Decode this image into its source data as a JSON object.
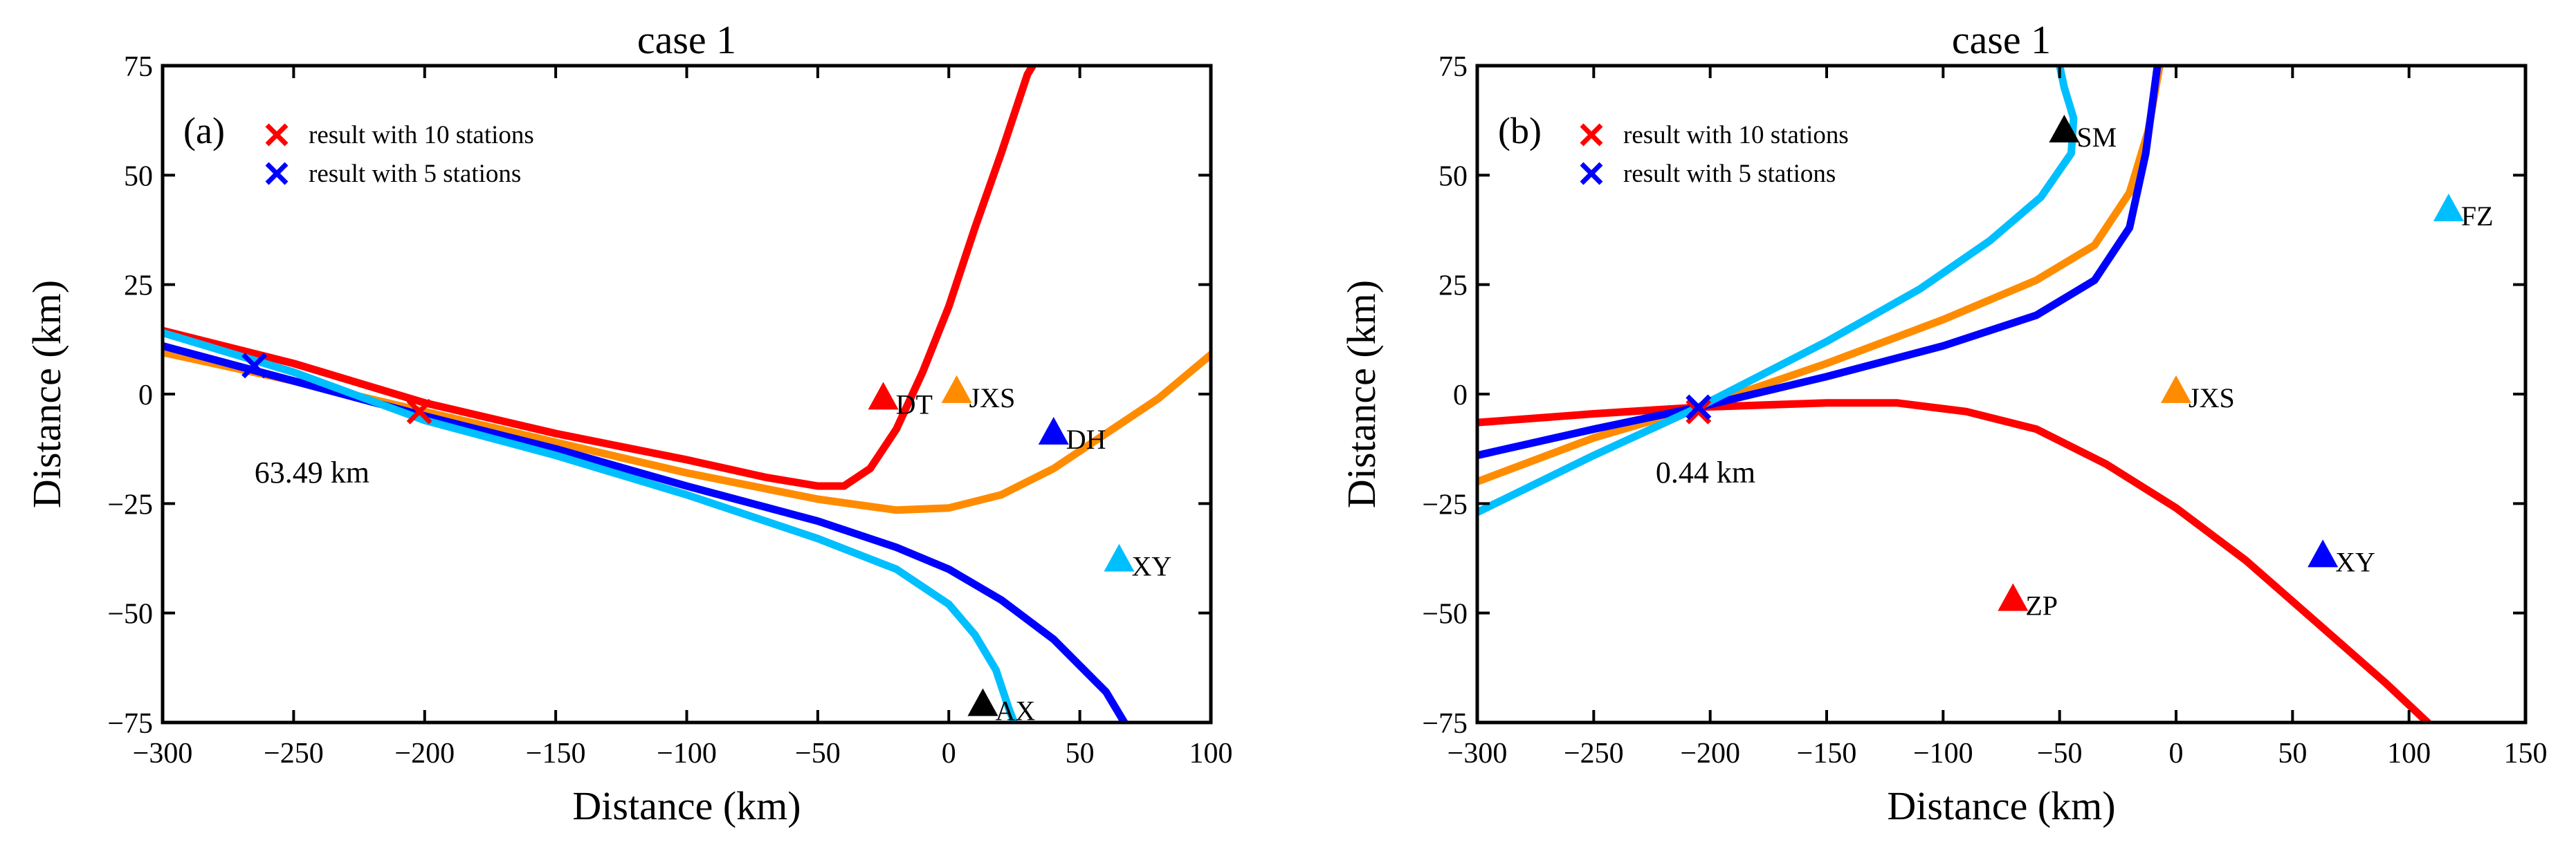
{
  "chart_data": [
    {
      "type": "line",
      "panel_label": "(a)",
      "title": "case 1",
      "xlabel": "Distance (km)",
      "ylabel": "Distance (km)",
      "xlim": [
        -300,
        100
      ],
      "ylim": [
        -75,
        75
      ],
      "xticks": [
        -300,
        -250,
        -200,
        -150,
        -100,
        -50,
        0,
        50,
        100
      ],
      "yticks": [
        -75,
        -50,
        -25,
        0,
        25,
        50,
        75
      ],
      "xtick_labels": [
        "−300",
        "−250",
        "−200",
        "−150",
        "−100",
        "−50",
        "0",
        "50",
        "100"
      ],
      "ytick_labels": [
        "−75",
        "−50",
        "−25",
        "0",
        "25",
        "50",
        "75"
      ],
      "annotation": "63.49 km",
      "legend": {
        "position": "top-left",
        "entries": [
          {
            "label": "result with 10 stations",
            "color": "#ff0000",
            "marker": "x"
          },
          {
            "label": "result with 5 stations",
            "color": "#0000ff",
            "marker": "x"
          }
        ]
      },
      "series": [
        {
          "name": "red curve",
          "color": "#ff0000",
          "points": [
            [
              -300,
              14.5
            ],
            [
              -250,
              7
            ],
            [
              -200,
              -2
            ],
            [
              -150,
              -9
            ],
            [
              -100,
              -15
            ],
            [
              -70,
              -19
            ],
            [
              -50,
              -21
            ],
            [
              -40,
              -21
            ],
            [
              -30,
              -17
            ],
            [
              -20,
              -8
            ],
            [
              -10,
              5
            ],
            [
              0,
              20
            ],
            [
              10,
              38
            ],
            [
              20,
              55
            ],
            [
              30,
              73
            ],
            [
              32,
              75
            ]
          ]
        },
        {
          "name": "orange curve",
          "color": "#ff8c00",
          "points": [
            [
              -300,
              9.5
            ],
            [
              -250,
              3
            ],
            [
              -200,
              -4
            ],
            [
              -150,
              -11
            ],
            [
              -100,
              -18
            ],
            [
              -50,
              -24
            ],
            [
              -20,
              -26.5
            ],
            [
              0,
              -26
            ],
            [
              20,
              -23
            ],
            [
              40,
              -17
            ],
            [
              60,
              -9
            ],
            [
              80,
              -1
            ],
            [
              100,
              9
            ]
          ]
        },
        {
          "name": "blue curve",
          "color": "#0000ff",
          "points": [
            [
              -300,
              11
            ],
            [
              -250,
              3
            ],
            [
              -200,
              -5
            ],
            [
              -150,
              -12.5
            ],
            [
              -100,
              -21
            ],
            [
              -50,
              -29
            ],
            [
              -20,
              -35
            ],
            [
              0,
              -40
            ],
            [
              20,
              -47
            ],
            [
              40,
              -56
            ],
            [
              60,
              -68
            ],
            [
              67,
              -75
            ]
          ]
        },
        {
          "name": "light blue curve",
          "color": "#00bfff",
          "points": [
            [
              -300,
              14
            ],
            [
              -250,
              5
            ],
            [
              -200,
              -6
            ],
            [
              -150,
              -14
            ],
            [
              -100,
              -23
            ],
            [
              -50,
              -33
            ],
            [
              -20,
              -40
            ],
            [
              0,
              -48
            ],
            [
              10,
              -55
            ],
            [
              18,
              -63
            ],
            [
              23,
              -72
            ],
            [
              25,
              -75
            ]
          ]
        }
      ],
      "crosses": [
        {
          "x": -265,
          "y": 6.5,
          "color": "#0000ff"
        },
        {
          "x": -202,
          "y": -4,
          "color": "#ff0000"
        }
      ],
      "stations": [
        {
          "name": "DT",
          "x": -25,
          "y": -1,
          "color": "#ff0000"
        },
        {
          "name": "JXS",
          "x": 3,
          "y": 0.5,
          "color": "#ff8c00"
        },
        {
          "name": "DH",
          "x": 40,
          "y": -9,
          "color": "#0000ff"
        },
        {
          "name": "XY",
          "x": 65,
          "y": -38,
          "color": "#00bfff"
        },
        {
          "name": "AX",
          "x": 13,
          "y": -71,
          "color": "#000000"
        }
      ]
    },
    {
      "type": "line",
      "panel_label": "(b)",
      "title": "case 1",
      "xlabel": "Distance (km)",
      "ylabel": "Distance (km)",
      "xlim": [
        -300,
        150
      ],
      "ylim": [
        -75,
        75
      ],
      "xticks": [
        -300,
        -250,
        -200,
        -150,
        -100,
        -50,
        0,
        50,
        100,
        150
      ],
      "yticks": [
        -75,
        -50,
        -25,
        0,
        25,
        50,
        75
      ],
      "xtick_labels": [
        "−300",
        "−250",
        "−200",
        "−150",
        "−100",
        "−50",
        "0",
        "50",
        "100",
        "150"
      ],
      "ytick_labels": [
        "−75",
        "−50",
        "−25",
        "0",
        "25",
        "50",
        "75"
      ],
      "annotation": "0.44 km",
      "legend": {
        "position": "top-left",
        "entries": [
          {
            "label": "result with 10 stations",
            "color": "#ff0000",
            "marker": "x"
          },
          {
            "label": "result with 5 stations",
            "color": "#0000ff",
            "marker": "x"
          }
        ]
      },
      "series": [
        {
          "name": "red curve",
          "color": "#ff0000",
          "points": [
            [
              -300,
              -6.5
            ],
            [
              -250,
              -4.5
            ],
            [
              -205,
              -3
            ],
            [
              -150,
              -2
            ],
            [
              -120,
              -2
            ],
            [
              -90,
              -4
            ],
            [
              -60,
              -8
            ],
            [
              -30,
              -16
            ],
            [
              0,
              -26
            ],
            [
              30,
              -38
            ],
            [
              60,
              -52
            ],
            [
              90,
              -66
            ],
            [
              108,
              -75
            ]
          ]
        },
        {
          "name": "orange curve",
          "color": "#ff8c00",
          "points": [
            [
              -300,
              -20
            ],
            [
              -250,
              -10
            ],
            [
              -205,
              -3
            ],
            [
              -150,
              7
            ],
            [
              -100,
              17
            ],
            [
              -60,
              26
            ],
            [
              -35,
              34
            ],
            [
              -20,
              46
            ],
            [
              -12,
              60
            ],
            [
              -7,
              75
            ]
          ]
        },
        {
          "name": "blue curve",
          "color": "#0000ff",
          "points": [
            [
              -300,
              -14
            ],
            [
              -250,
              -8
            ],
            [
              -205,
              -3
            ],
            [
              -150,
              4
            ],
            [
              -100,
              11
            ],
            [
              -60,
              18
            ],
            [
              -35,
              26
            ],
            [
              -20,
              38
            ],
            [
              -13,
              55
            ],
            [
              -8,
              75
            ]
          ]
        },
        {
          "name": "light blue curve",
          "color": "#00bfff",
          "points": [
            [
              -300,
              -27
            ],
            [
              -250,
              -14
            ],
            [
              -205,
              -3
            ],
            [
              -150,
              12
            ],
            [
              -110,
              24
            ],
            [
              -80,
              35
            ],
            [
              -58,
              45
            ],
            [
              -45,
              55
            ],
            [
              -44,
              63
            ],
            [
              -48,
              70
            ],
            [
              -50,
              75
            ]
          ]
        }
      ],
      "crosses": [
        {
          "x": -205,
          "y": -4,
          "color": "#ff0000"
        },
        {
          "x": -205,
          "y": -3,
          "color": "#0000ff"
        }
      ],
      "stations": [
        {
          "name": "SM",
          "x": -48,
          "y": 60,
          "color": "#000000"
        },
        {
          "name": "FZ",
          "x": 117,
          "y": 42,
          "color": "#00bfff"
        },
        {
          "name": "JXS",
          "x": 0,
          "y": 0.5,
          "color": "#ff8c00"
        },
        {
          "name": "XY",
          "x": 63,
          "y": -37,
          "color": "#0000ff"
        },
        {
          "name": "ZP",
          "x": -70,
          "y": -47,
          "color": "#ff0000"
        }
      ]
    }
  ]
}
